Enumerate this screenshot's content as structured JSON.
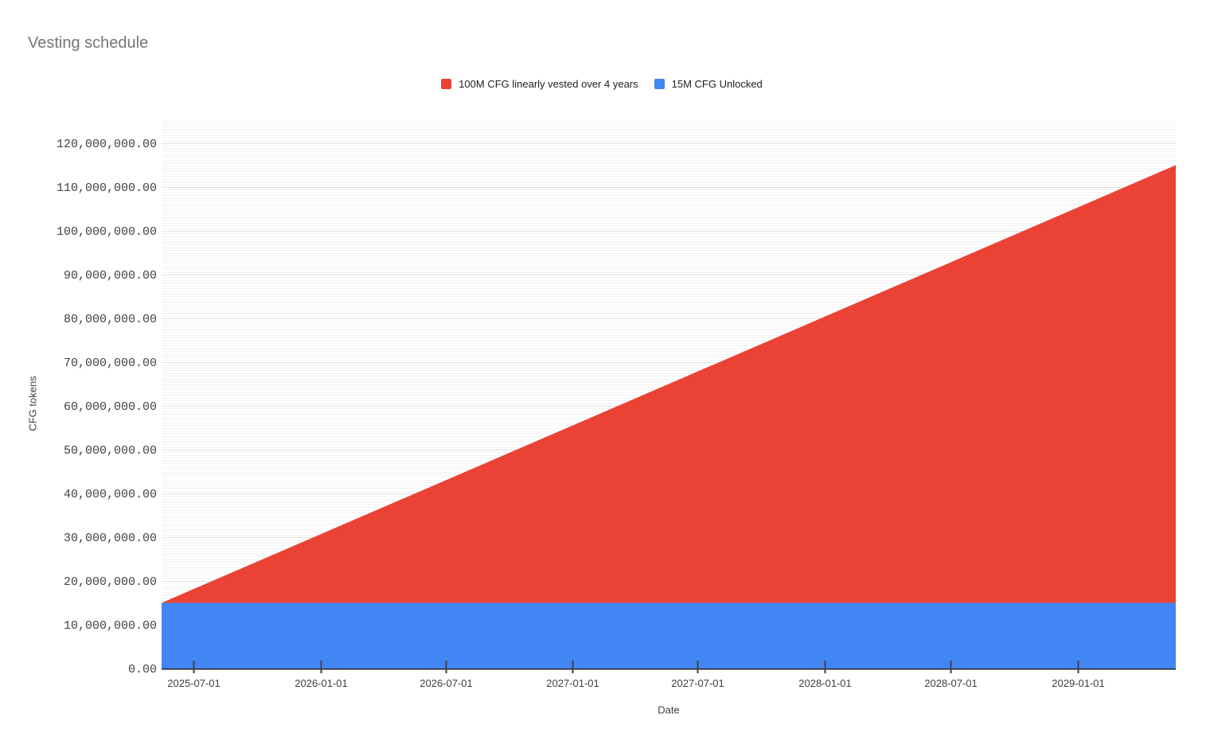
{
  "title": "Vesting schedule",
  "legend": {
    "items": [
      {
        "label": "100M CFG linearly vested over 4 years",
        "color": "#EA4335"
      },
      {
        "label": "15M CFG Unlocked",
        "color": "#4285F4"
      }
    ]
  },
  "axes": {
    "y_title": "CFG tokens",
    "x_title": "Date",
    "y_tick_labels": [
      "0.00",
      "10,000,000.00",
      "20,000,000.00",
      "30,000,000.00",
      "40,000,000.00",
      "50,000,000.00",
      "60,000,000.00",
      "70,000,000.00",
      "80,000,000.00",
      "90,000,000.00",
      "100,000,000.00",
      "110,000,000.00",
      "120,000,000.00"
    ],
    "y_tick_values": [
      0,
      10000000,
      20000000,
      30000000,
      40000000,
      50000000,
      60000000,
      70000000,
      80000000,
      90000000,
      100000000,
      110000000,
      120000000
    ],
    "x_tick_labels": [
      "2025-07-01",
      "2026-01-01",
      "2026-07-01",
      "2027-01-01",
      "2027-07-01",
      "2028-01-01",
      "2028-07-01",
      "2029-01-01"
    ]
  },
  "chart_data": {
    "type": "area",
    "stacked": true,
    "title": "Vesting schedule",
    "xlabel": "Date",
    "ylabel": "CFG tokens",
    "x_start": "2025-05-16",
    "x_end": "2029-05-23",
    "y_plot_max": 125000000,
    "grid": {
      "major_step": 10000000,
      "minor_step": 625000
    },
    "series": [
      {
        "name": "15M CFG Unlocked",
        "color": "#4285F4",
        "points": [
          {
            "x": "2025-05-16",
            "y": 15000000
          },
          {
            "x": "2029-05-23",
            "y": 15000000
          }
        ]
      },
      {
        "name": "100M CFG linearly vested over 4 years",
        "color": "#EA4335",
        "points": [
          {
            "x": "2025-05-16",
            "y": 0
          },
          {
            "x": "2029-05-23",
            "y": 100000000
          }
        ]
      }
    ]
  }
}
